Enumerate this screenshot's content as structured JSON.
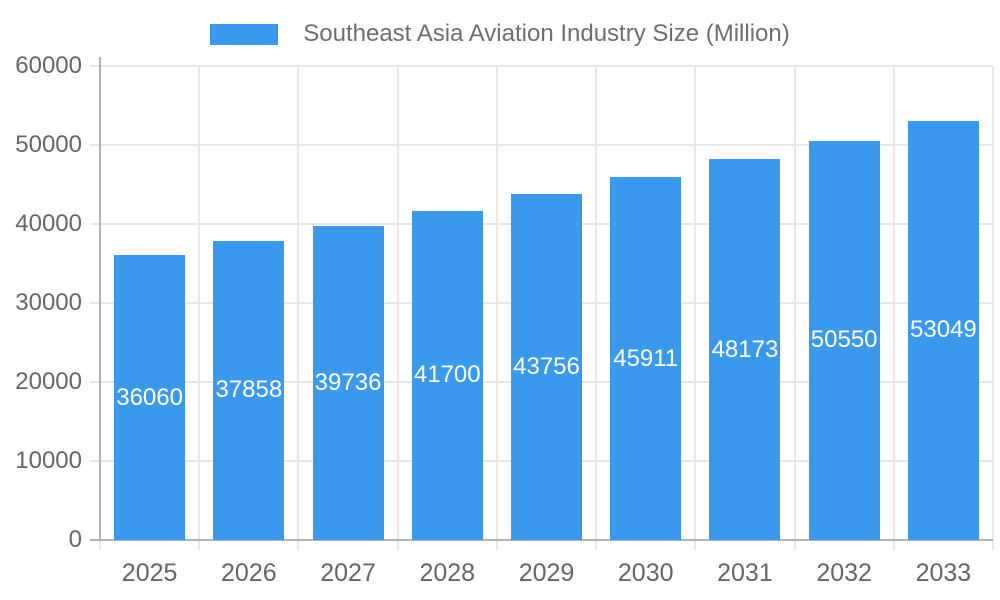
{
  "legend": {
    "label": "Southeast Asia Aviation Industry Size (Million)"
  },
  "chart_data": {
    "type": "bar",
    "title": "Southeast Asia Aviation Industry Size (Million)",
    "categories": [
      "2025",
      "2026",
      "2027",
      "2028",
      "2029",
      "2030",
      "2031",
      "2032",
      "2033"
    ],
    "values": [
      36060,
      37858,
      39736,
      41700,
      43756,
      45911,
      48173,
      50550,
      53049
    ],
    "xlabel": "",
    "ylabel": "",
    "ylim": [
      0,
      60000
    ],
    "y_ticks": [
      0,
      10000,
      20000,
      30000,
      40000,
      50000,
      60000
    ],
    "grid": true,
    "legend_position": "top-center",
    "value_label_position": "inside-center"
  },
  "colors": {
    "bar": "#3A99EC",
    "bar_label": "#FFFFFF",
    "axis_text": "#666666",
    "legend_text": "#6E6E6E",
    "axis_line": "#B3B3B3",
    "gridline": "#E7E7E7",
    "background": "#FFFFFF"
  }
}
